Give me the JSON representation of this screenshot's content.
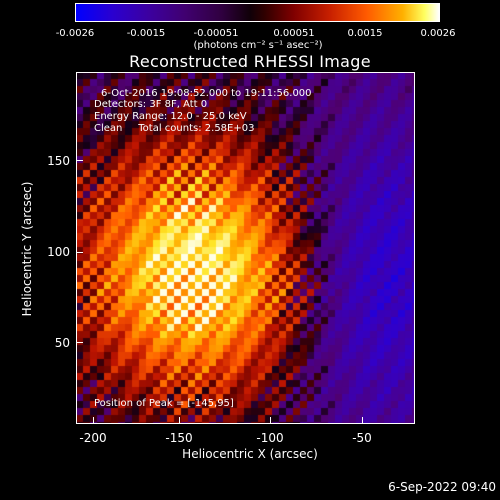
{
  "colorbar": {
    "ticks": [
      "-0.0026",
      "-0.0015",
      "-0.00051",
      "0.00051",
      "0.0015",
      "0.0026"
    ],
    "unit": "(photons cm⁻² s⁻¹ asec⁻²)"
  },
  "title": "Reconstructed RHESSI Image",
  "info": {
    "time_range": "6-Oct-2016 19:08:52.000 to 19:11:56.000",
    "detectors": "Detectors: 3F 8F, Att 0",
    "energy": "Energy Range: 12.0 - 25.0 keV",
    "clean": "Clean     Total counts: 2.58E+03",
    "peak": "Position of Peak = [-145,95]"
  },
  "axes": {
    "xlabel": "Heliocentric X (arcsec)",
    "ylabel": "Heliocentric Y (arcsec)",
    "xticks": [
      "-200",
      "-150",
      "-100",
      "-50"
    ],
    "yticks": [
      "150",
      "100",
      "50"
    ],
    "xlim": [
      -213,
      -15
    ],
    "ylim": [
      3,
      208
    ]
  },
  "peak": {
    "x": -145,
    "y": 95
  },
  "datestamp": "6-Sep-2022 09:40"
}
